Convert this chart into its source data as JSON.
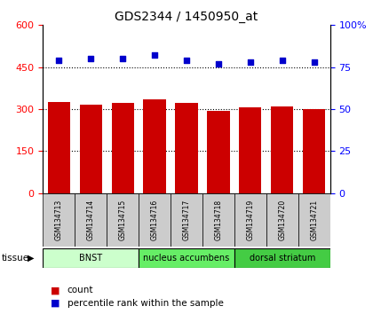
{
  "title": "GDS2344 / 1450950_at",
  "samples": [
    "GSM134713",
    "GSM134714",
    "GSM134715",
    "GSM134716",
    "GSM134717",
    "GSM134718",
    "GSM134719",
    "GSM134720",
    "GSM134721"
  ],
  "counts": [
    325,
    315,
    322,
    335,
    322,
    293,
    305,
    310,
    300
  ],
  "percentiles": [
    79,
    80,
    80,
    82,
    79,
    77,
    78,
    79,
    78
  ],
  "groups": [
    {
      "label": "BNST",
      "start": 0,
      "end": 3,
      "color": "#ccffcc"
    },
    {
      "label": "nucleus accumbens",
      "start": 3,
      "end": 6,
      "color": "#66ee66"
    },
    {
      "label": "dorsal striatum",
      "start": 6,
      "end": 9,
      "color": "#44cc44"
    }
  ],
  "bar_color": "#cc0000",
  "dot_color": "#0000cc",
  "ylim_left": [
    0,
    600
  ],
  "ylim_right": [
    0,
    100
  ],
  "yticks_left": [
    0,
    150,
    300,
    450,
    600
  ],
  "yticks_right": [
    0,
    25,
    50,
    75,
    100
  ],
  "grid_values": [
    150,
    300,
    450
  ],
  "label_box_color": "#cccccc"
}
